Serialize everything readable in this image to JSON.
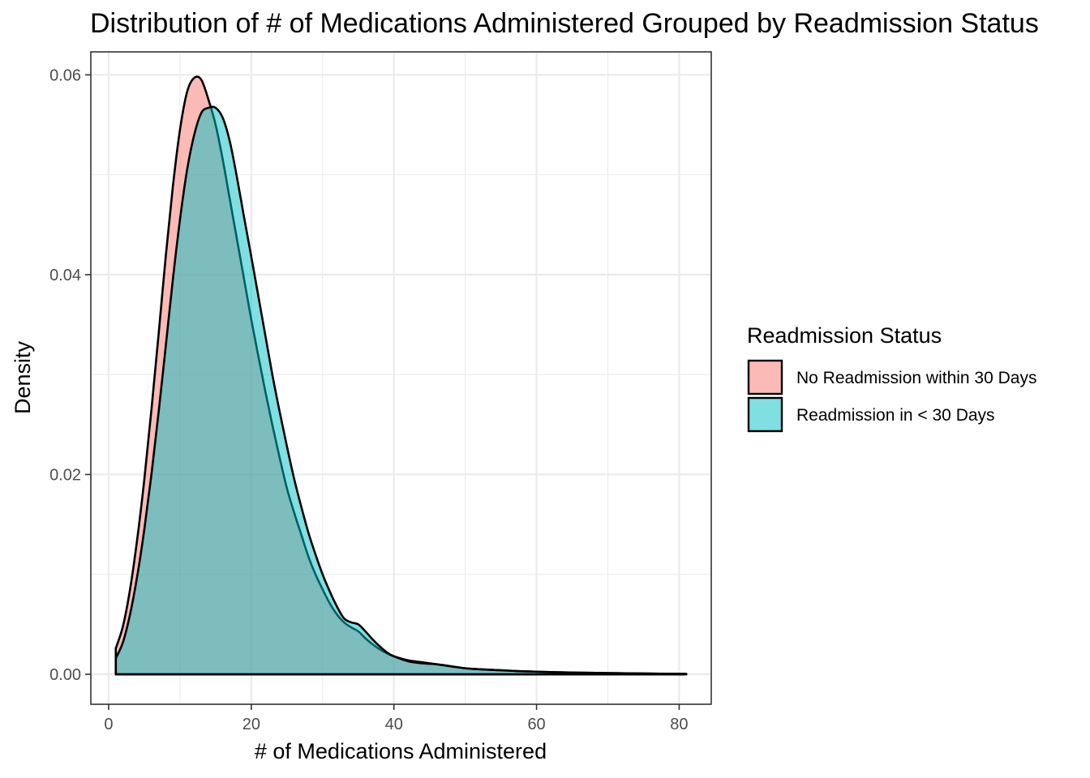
{
  "chart_data": {
    "type": "area",
    "title": "Distribution of # of Medications Administered Grouped by Readmission Status",
    "xlabel": "# of Medications Administered",
    "ylabel": "Density",
    "xlim": [
      -2.5,
      84.5
    ],
    "ylim": [
      -0.003,
      0.0623
    ],
    "x_ticks": [
      0,
      20,
      40,
      60,
      80
    ],
    "x_tick_labels": [
      "0",
      "20",
      "40",
      "60",
      "80"
    ],
    "y_ticks": [
      0.0,
      0.02,
      0.04,
      0.06
    ],
    "y_tick_labels": [
      "0.00",
      "0.02",
      "0.04",
      "0.06"
    ],
    "grid": true,
    "legend": {
      "title": "Readmission Status",
      "placement": "right"
    },
    "series": [
      {
        "name": "No Readmission within 30 Days",
        "color": "#F8766D",
        "fill_opacity": 0.5,
        "points": [
          [
            1,
            0.0026
          ],
          [
            2,
            0.0048
          ],
          [
            3,
            0.0085
          ],
          [
            4,
            0.0135
          ],
          [
            5,
            0.0195
          ],
          [
            6,
            0.0265
          ],
          [
            7,
            0.034
          ],
          [
            8,
            0.0418
          ],
          [
            9,
            0.0488
          ],
          [
            10,
            0.0545
          ],
          [
            11,
            0.0583
          ],
          [
            12,
            0.0597
          ],
          [
            13,
            0.0595
          ],
          [
            14,
            0.0575
          ],
          [
            15,
            0.055
          ],
          [
            16,
            0.0515
          ],
          [
            17,
            0.0475
          ],
          [
            18,
            0.0435
          ],
          [
            19,
            0.0395
          ],
          [
            20,
            0.0355
          ],
          [
            21,
            0.0318
          ],
          [
            22,
            0.0282
          ],
          [
            23,
            0.0248
          ],
          [
            24,
            0.0216
          ],
          [
            25,
            0.0186
          ],
          [
            26,
            0.0162
          ],
          [
            27,
            0.014
          ],
          [
            28,
            0.0118
          ],
          [
            29,
            0.01
          ],
          [
            30,
            0.0085
          ],
          [
            31,
            0.0071
          ],
          [
            32,
            0.006
          ],
          [
            33,
            0.0052
          ],
          [
            34,
            0.0047
          ],
          [
            35,
            0.0043
          ],
          [
            36,
            0.0036
          ],
          [
            37,
            0.003
          ],
          [
            38,
            0.0025
          ],
          [
            39,
            0.0021
          ],
          [
            40,
            0.0018
          ],
          [
            42,
            0.0014
          ],
          [
            44,
            0.0012
          ],
          [
            46,
            0.001
          ],
          [
            48,
            0.0008
          ],
          [
            50,
            0.0006
          ],
          [
            52,
            0.0005
          ],
          [
            55,
            0.0004
          ],
          [
            58,
            0.0003
          ],
          [
            62,
            0.00022
          ],
          [
            66,
            0.00016
          ],
          [
            70,
            0.00012
          ],
          [
            75,
            8e-05
          ],
          [
            81,
            4e-05
          ]
        ]
      },
      {
        "name": "Readmission in < 30 Days",
        "color": "#00BFC4",
        "fill_opacity": 0.5,
        "points": [
          [
            1,
            0.0016
          ],
          [
            2,
            0.0032
          ],
          [
            3,
            0.006
          ],
          [
            4,
            0.0098
          ],
          [
            5,
            0.0145
          ],
          [
            6,
            0.02
          ],
          [
            7,
            0.0262
          ],
          [
            8,
            0.0328
          ],
          [
            9,
            0.0395
          ],
          [
            10,
            0.0455
          ],
          [
            11,
            0.0505
          ],
          [
            12,
            0.054
          ],
          [
            13,
            0.0562
          ],
          [
            14,
            0.0567
          ],
          [
            15,
            0.0567
          ],
          [
            16,
            0.0557
          ],
          [
            17,
            0.0533
          ],
          [
            18,
            0.0497
          ],
          [
            19,
            0.0457
          ],
          [
            20,
            0.0418
          ],
          [
            21,
            0.0378
          ],
          [
            22,
            0.0338
          ],
          [
            23,
            0.0298
          ],
          [
            24,
            0.0262
          ],
          [
            25,
            0.0228
          ],
          [
            26,
            0.0196
          ],
          [
            27,
            0.0168
          ],
          [
            28,
            0.0142
          ],
          [
            29,
            0.012
          ],
          [
            30,
            0.01
          ],
          [
            31,
            0.0083
          ],
          [
            32,
            0.0068
          ],
          [
            33,
            0.0056
          ],
          [
            34,
            0.0052
          ],
          [
            35,
            0.005
          ],
          [
            36,
            0.0043
          ],
          [
            37,
            0.0035
          ],
          [
            38,
            0.0028
          ],
          [
            39,
            0.0022
          ],
          [
            40,
            0.0018
          ],
          [
            42,
            0.0013
          ],
          [
            44,
            0.0011
          ],
          [
            46,
            0.001
          ],
          [
            48,
            0.0008
          ],
          [
            50,
            0.0006
          ],
          [
            52,
            0.0005
          ],
          [
            55,
            0.0004
          ],
          [
            58,
            0.0003
          ],
          [
            62,
            0.00022
          ],
          [
            66,
            0.00016
          ],
          [
            70,
            0.00012
          ],
          [
            75,
            8e-05
          ],
          [
            81,
            4e-05
          ]
        ]
      }
    ]
  }
}
